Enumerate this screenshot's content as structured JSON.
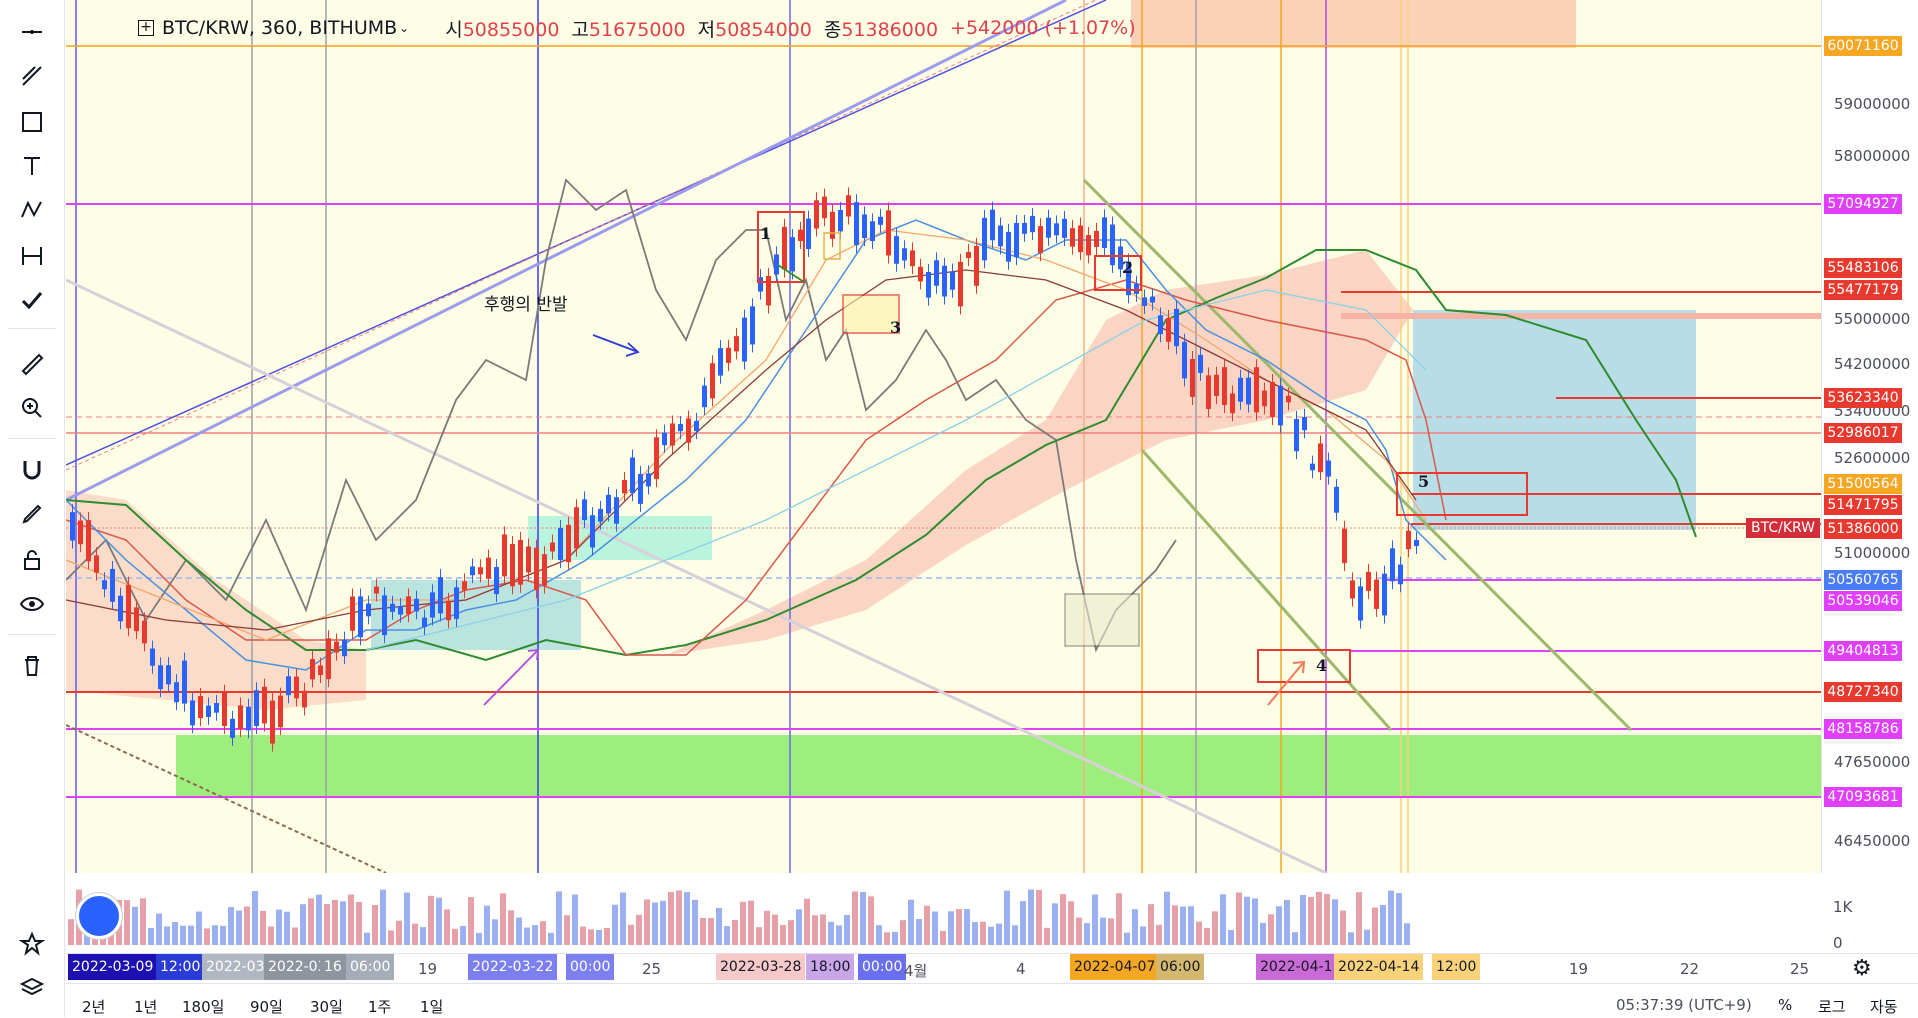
{
  "header": {
    "symbol": "BTC/KRW, 360, BITHUMB",
    "open_label": "시",
    "open": "50855000",
    "high_label": "고",
    "high": "51675000",
    "low_label": "저",
    "low": "50854000",
    "close_label": "종",
    "close": "51386000",
    "change": "+542000 (+1.07%)"
  },
  "annotation_text": "후행의 반발",
  "chart_notes": [
    "1",
    "2",
    "3",
    "4",
    "5"
  ],
  "price_ticks": [
    "59000000",
    "58000000",
    "55000000",
    "54200000",
    "53400000",
    "52600000",
    "51000000",
    "47650000",
    "46450000"
  ],
  "price_labels": [
    {
      "value": "60071160",
      "color": "#f5a623"
    },
    {
      "value": "57094927",
      "color": "#e040fb"
    },
    {
      "value": "55483106",
      "color": "#e8392f"
    },
    {
      "value": "55477179",
      "color": "#e8392f"
    },
    {
      "value": "53623340",
      "color": "#e8392f"
    },
    {
      "value": "52986017",
      "color": "#e8392f"
    },
    {
      "value": "51500564",
      "color": "#f5a623"
    },
    {
      "value": "51471795",
      "color": "#e8392f"
    },
    {
      "value": "51386000",
      "color": "#e8392f"
    },
    {
      "value": "50560765",
      "color": "#4a7cf5"
    },
    {
      "value": "50539046",
      "color": "#e040fb"
    },
    {
      "value": "49404813",
      "color": "#e040fb"
    },
    {
      "value": "48727340",
      "color": "#e8392f"
    },
    {
      "value": "48158786",
      "color": "#e040fb"
    },
    {
      "value": "47093681",
      "color": "#e040fb"
    }
  ],
  "btc_tag": "BTC/KRW",
  "volume_ticks": [
    "1K",
    "0"
  ],
  "time_labels": [
    "19",
    "25",
    "4월",
    "4",
    "19",
    "22",
    "25"
  ],
  "time_badges": [
    {
      "text": "2022-03-09",
      "color": "#1d0fb0"
    },
    {
      "text": "12:00",
      "color": "#2a3bd6"
    },
    {
      "text": "2022-03-1",
      "color": "#b0b7c3"
    },
    {
      "text": "2022-03-",
      "color": "#8e959f"
    },
    {
      "text": "16",
      "color": "#8e959f"
    },
    {
      "text": "06:00",
      "color": "#a6adb8"
    },
    {
      "text": "2022-03-22",
      "color": "#7b7ff0"
    },
    {
      "text": "00:00",
      "color": "#7b7ff0"
    },
    {
      "text": "2022-03-28",
      "color": "#f6c8c8"
    },
    {
      "text": "18:00",
      "color": "#c8a6e8"
    },
    {
      "text": "00:00",
      "color": "#6a6ff0"
    },
    {
      "text": "2022-04-07",
      "color": "#f5a623"
    },
    {
      "text": "06:00",
      "color": "#d4b870"
    },
    {
      "text": "2022-04-1",
      "color": "#c96ad6"
    },
    {
      "text": "2022-04-14",
      "color": "#fad27a"
    },
    {
      "text": "12:00",
      "color": "#fad27a"
    }
  ],
  "ranges": [
    "2년",
    "1년",
    "180일",
    "90일",
    "30일",
    "1주",
    "1일"
  ],
  "clock": "05:37:39 (UTC+9)",
  "bottom_right": [
    "%",
    "로그",
    "자동"
  ]
}
